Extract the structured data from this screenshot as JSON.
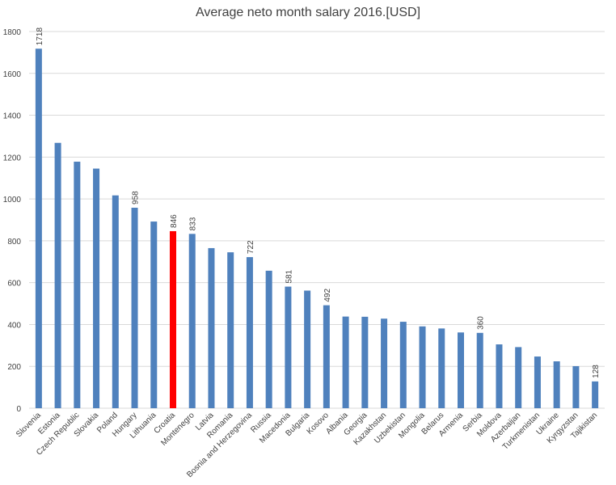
{
  "chart_data": {
    "type": "bar",
    "title": "Average neto month salary 2016.[USD]",
    "xlabel": "",
    "ylabel": "",
    "ylim": [
      0,
      1800
    ],
    "yticks": [
      0,
      200,
      400,
      600,
      800,
      1000,
      1200,
      1400,
      1600,
      1800
    ],
    "grid": true,
    "legend": "none",
    "categories": [
      "Slovenia",
      "Estonia",
      "Czech Republic",
      "Slovakia",
      "Poland",
      "Hungary",
      "Lithuania",
      "Croatia",
      "Montenegro",
      "Latvia",
      "Romania",
      "Bosnia and Herzegovina",
      "Russia",
      "Macedonia",
      "Bulgaria",
      "Kosovo",
      "Albania",
      "Georgia",
      "Kazakhstan",
      "Uzbekistan",
      "Mongolia",
      "Belarus",
      "Armenia",
      "Serbia",
      "Moldova",
      "Azerbaijan",
      "Turkmenistan",
      "Ukraine",
      "Kyrgyzstan",
      "Tajikistan"
    ],
    "values": [
      1718,
      1268,
      1178,
      1145,
      1017,
      958,
      892,
      846,
      833,
      765,
      745,
      722,
      657,
      581,
      562,
      492,
      438,
      437,
      428,
      413,
      391,
      381,
      362,
      360,
      305,
      292,
      247,
      224,
      201,
      128
    ],
    "data_labels": {
      "Slovenia": "1718",
      "Hungary": "958",
      "Croatia": "846",
      "Montenegro": "833",
      "Bosnia and Herzegovina": "722",
      "Macedonia": "581",
      "Kosovo": "492",
      "Serbia": "360",
      "Tajikistan": "128"
    },
    "highlight": "Croatia",
    "colors": {
      "bar": "#4f81bd",
      "highlight": "#ff0000",
      "grid": "#d9d9d9",
      "text": "#404040"
    }
  }
}
